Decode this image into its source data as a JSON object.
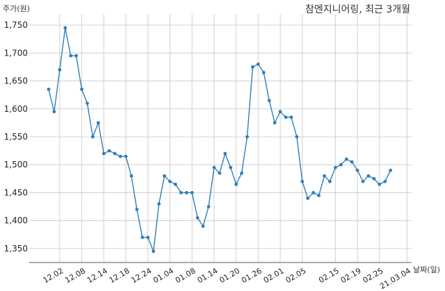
{
  "chart_data": {
    "type": "line",
    "title": "참엔지니어링, 최근 3개월",
    "ylabel": "주가(원)",
    "xlabel": "날짜(일)",
    "ylim": [
      1325,
      1770
    ],
    "yticks": [
      1350,
      1400,
      1450,
      1500,
      1550,
      1600,
      1650,
      1700,
      1750
    ],
    "ytick_labels": [
      "1,350",
      "1,400",
      "1,450",
      "1,500",
      "1,550",
      "1,600",
      "1,650",
      "1,700",
      "1,750"
    ],
    "xtick_labels": [
      "12.02",
      "12.08",
      "12.14",
      "12.18",
      "12.24",
      "01.04",
      "01.08",
      "01.14",
      "01.20",
      "01.26",
      "02.01",
      "02.05",
      "02.15",
      "02.19",
      "02.25",
      "21.03.04"
    ],
    "xtick_index": [
      2,
      6,
      10,
      14,
      18,
      22,
      26,
      30,
      34,
      38,
      42,
      46,
      52,
      56,
      60,
      65
    ],
    "grid": true,
    "color": "#2e7fb8",
    "series": [
      {
        "values": [
          1635,
          1595,
          1670,
          1745,
          1695,
          1695,
          1635,
          1610,
          1550,
          1575,
          1520,
          1525,
          1520,
          1515,
          1515,
          1480,
          1420,
          1370,
          1370,
          1345,
          1430,
          1480,
          1470,
          1465,
          1450,
          1450,
          1450,
          1405,
          1390,
          1425,
          1495,
          1485,
          1520,
          1495,
          1465,
          1485,
          1550,
          1675,
          1680,
          1665,
          1615,
          1575,
          1595,
          1585,
          1585,
          1550,
          1470,
          1440,
          1450,
          1445,
          1480,
          1470,
          1495,
          1500,
          1510,
          1505,
          1490,
          1470,
          1480,
          1475,
          1465,
          1470,
          1490
        ]
      }
    ]
  }
}
